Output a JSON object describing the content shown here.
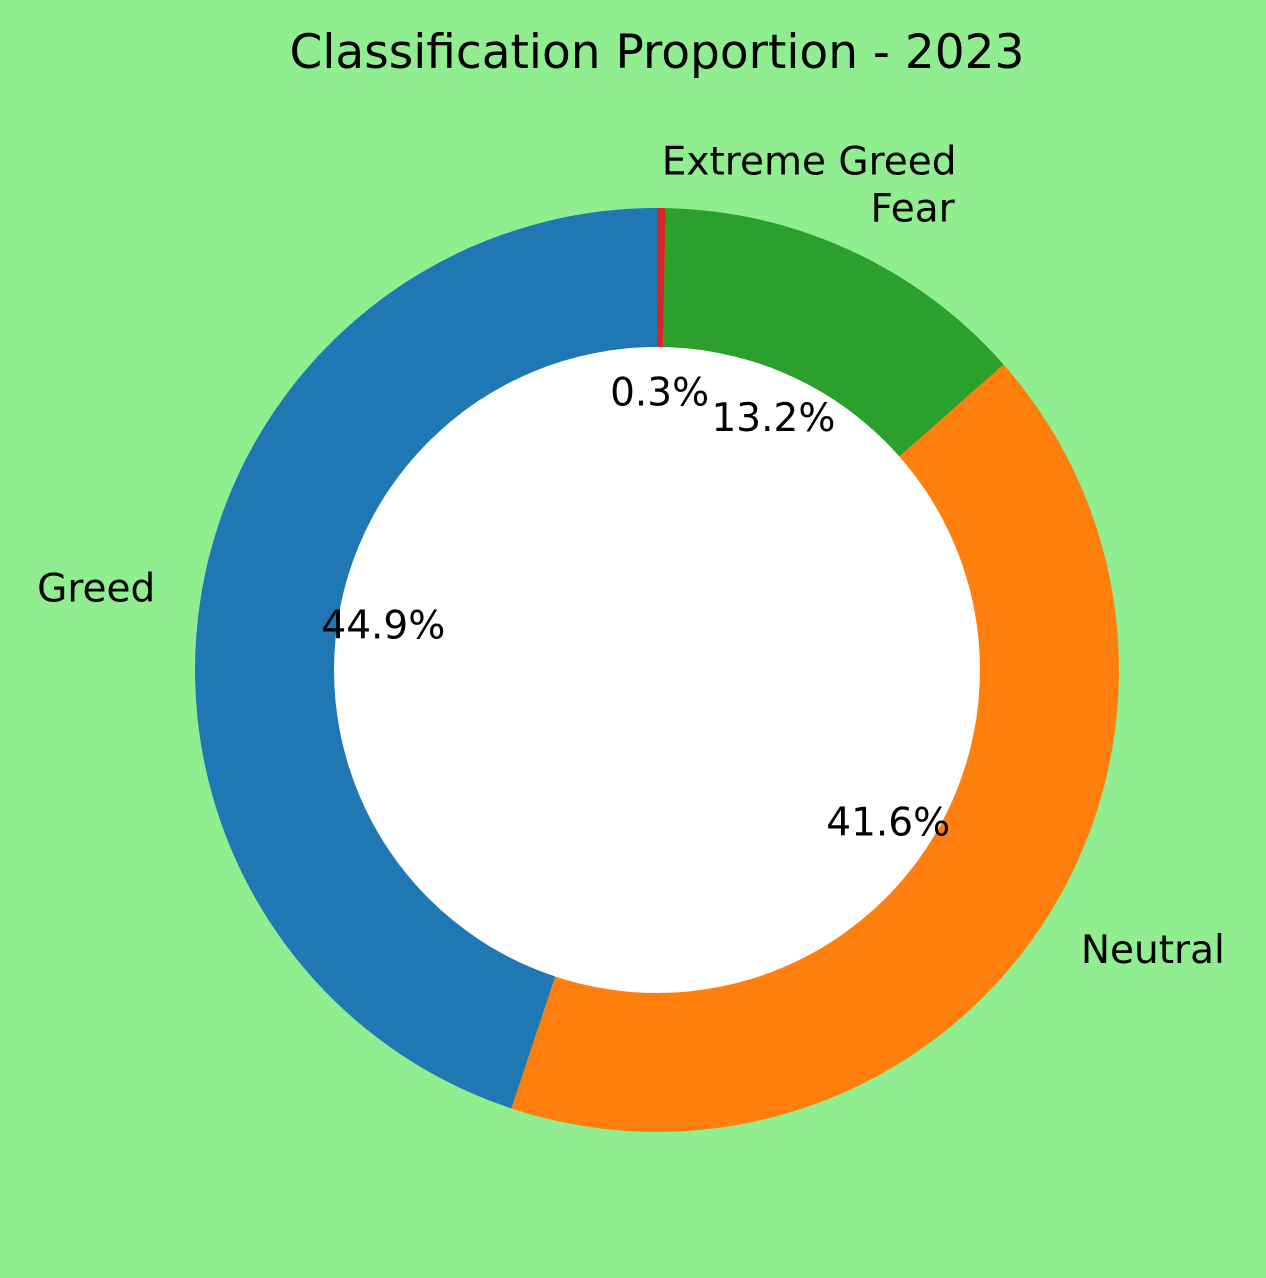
{
  "chart_data": {
    "type": "pie",
    "variant": "donut",
    "title": "Classification Proportion - 2023",
    "background_color": "#90ee90",
    "center_color": "#ffffff",
    "slices": [
      {
        "label": "Greed",
        "value": 44.9,
        "pct_label": "44.9%",
        "color": "#1f77b4"
      },
      {
        "label": "Neutral",
        "value": 41.6,
        "pct_label": "41.6%",
        "color": "#ff7f0e"
      },
      {
        "label": "Fear",
        "value": 13.2,
        "pct_label": "13.2%",
        "color": "#2ca02c"
      },
      {
        "label": "Extreme Greed",
        "value": 0.3,
        "pct_label": "0.3%",
        "color": "#d62728"
      }
    ]
  }
}
